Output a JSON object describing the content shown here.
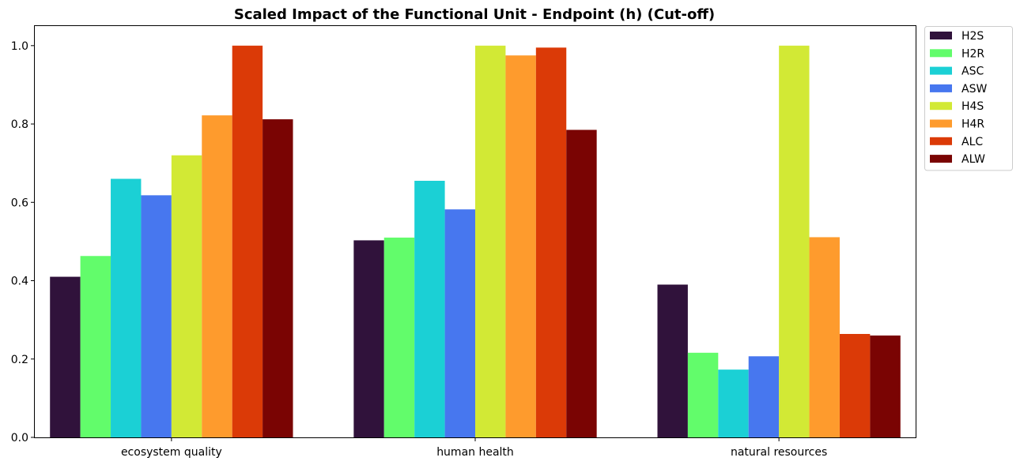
{
  "chart_data": {
    "type": "bar",
    "title": "Scaled Impact of the Functional Unit - Endpoint (h) (Cut-off)",
    "xlabel": "",
    "ylabel": "",
    "categories": [
      "ecosystem quality",
      "human health",
      "natural resources"
    ],
    "ylim": [
      0,
      1.05
    ],
    "yticks": [
      0.0,
      0.2,
      0.4,
      0.6,
      0.8,
      1.0
    ],
    "ytick_labels": [
      "0.0",
      "0.2",
      "0.4",
      "0.6",
      "0.8",
      "1.0"
    ],
    "grid": false,
    "legend_position": "outside-top-right",
    "series": [
      {
        "name": "H2S",
        "color": "#30123b",
        "values": [
          0.41,
          0.503,
          0.39
        ]
      },
      {
        "name": "H2R",
        "color": "#62fc6b",
        "values": [
          0.463,
          0.51,
          0.216
        ]
      },
      {
        "name": "ASC",
        "color": "#1bd0d5",
        "values": [
          0.66,
          0.655,
          0.173
        ]
      },
      {
        "name": "ASW",
        "color": "#4777ef",
        "values": [
          0.618,
          0.582,
          0.207
        ]
      },
      {
        "name": "H4S",
        "color": "#d2e935",
        "values": [
          0.72,
          1.0,
          1.0
        ]
      },
      {
        "name": "H4R",
        "color": "#fe9b2d",
        "values": [
          0.822,
          0.975,
          0.511
        ]
      },
      {
        "name": "ALC",
        "color": "#db3a07",
        "values": [
          1.0,
          0.995,
          0.264
        ]
      },
      {
        "name": "ALW",
        "color": "#7a0403",
        "values": [
          0.812,
          0.785,
          0.26
        ]
      }
    ]
  }
}
